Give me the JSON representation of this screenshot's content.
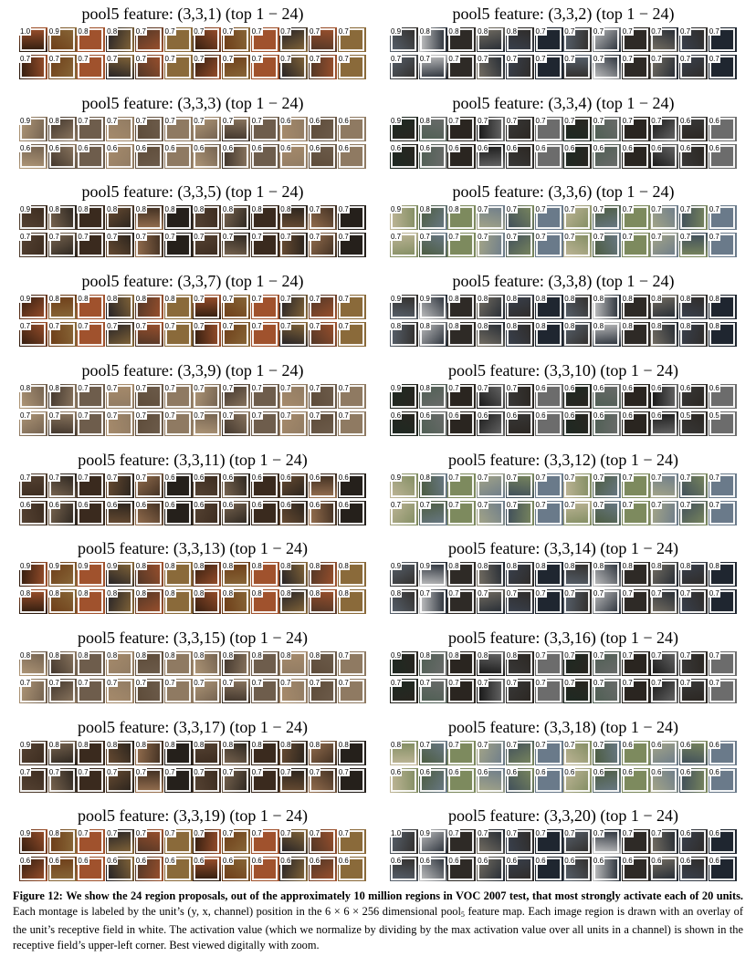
{
  "figure": {
    "panels": [
      {
        "title": "pool5 feature: (3,3,1) (top 1 − 24)",
        "values": [
          "1.0",
          "0.9",
          "0.8",
          "0.8",
          "0.7",
          "0.7",
          "0.7",
          "0.7",
          "0.7",
          "0.7",
          "0.7",
          "0.7",
          "0.7",
          "0.7",
          "0.7",
          "0.7",
          "0.7",
          "0.7",
          "0.7",
          "0.7",
          "0.7",
          "0.7",
          "0.7",
          "0.7"
        ]
      },
      {
        "title": "pool5 feature: (3,3,2) (top 1 − 24)",
        "values": [
          "0.9",
          "0.8",
          "0.8",
          "0.8",
          "0.8",
          "0.7",
          "0.7",
          "0.7",
          "0.7",
          "0.7",
          "0.7",
          "0.7",
          "0.7",
          "0.7",
          "0.7",
          "0.7",
          "0.7",
          "0.7",
          "0.7",
          "0.7",
          "0.7",
          "0.7",
          "0.7",
          "0.7"
        ]
      },
      {
        "title": "pool5 feature: (3,3,3) (top 1 − 24)",
        "values": [
          "0.9",
          "0.8",
          "0.7",
          "0.7",
          "0.7",
          "0.7",
          "0.7",
          "0.7",
          "0.7",
          "0.6",
          "0.6",
          "0.6",
          "0.6",
          "0.6",
          "0.6",
          "0.6",
          "0.6",
          "0.6",
          "0.6",
          "0.6",
          "0.6",
          "0.6",
          "0.6",
          "0.6"
        ]
      },
      {
        "title": "pool5 feature: (3,3,4) (top 1 − 24)",
        "values": [
          "0.9",
          "0.8",
          "0.7",
          "0.7",
          "0.7",
          "0.7",
          "0.7",
          "0.7",
          "0.7",
          "0.7",
          "0.6",
          "0.6",
          "0.6",
          "0.6",
          "0.6",
          "0.6",
          "0.6",
          "0.6",
          "0.6",
          "0.6",
          "0.6",
          "0.6",
          "0.6",
          "0.6"
        ]
      },
      {
        "title": "pool5 feature: (3,3,5) (top 1 − 24)",
        "values": [
          "0.9",
          "0.8",
          "0.8",
          "0.8",
          "0.8",
          "0.8",
          "0.8",
          "0.8",
          "0.8",
          "0.8",
          "0.7",
          "0.7",
          "0.7",
          "0.7",
          "0.7",
          "0.7",
          "0.7",
          "0.7",
          "0.7",
          "0.7",
          "0.7",
          "0.7",
          "0.7",
          "0.7"
        ]
      },
      {
        "title": "pool5 feature: (3,3,6) (top 1 − 24)",
        "values": [
          "0.9",
          "0.8",
          "0.8",
          "0.7",
          "0.7",
          "0.7",
          "0.7",
          "0.7",
          "0.7",
          "0.7",
          "0.7",
          "0.7",
          "0.7",
          "0.7",
          "0.7",
          "0.7",
          "0.7",
          "0.7",
          "0.7",
          "0.7",
          "0.7",
          "0.7",
          "0.7",
          "0.7"
        ]
      },
      {
        "title": "pool5 feature: (3,3,7) (top 1 − 24)",
        "values": [
          "0.9",
          "0.8",
          "0.8",
          "0.8",
          "0.8",
          "0.8",
          "0.7",
          "0.7",
          "0.7",
          "0.7",
          "0.7",
          "0.7",
          "0.7",
          "0.7",
          "0.7",
          "0.7",
          "0.7",
          "0.7",
          "0.7",
          "0.7",
          "0.7",
          "0.7",
          "0.7",
          "0.7"
        ]
      },
      {
        "title": "pool5 feature: (3,3,8) (top 1 − 24)",
        "values": [
          "0.9",
          "0.9",
          "0.8",
          "0.8",
          "0.8",
          "0.8",
          "0.8",
          "0.8",
          "0.8",
          "0.8",
          "0.8",
          "0.8",
          "0.8",
          "0.8",
          "0.8",
          "0.8",
          "0.8",
          "0.8",
          "0.8",
          "0.8",
          "0.8",
          "0.8",
          "0.8",
          "0.8"
        ]
      },
      {
        "title": "pool5 feature: (3,3,9) (top 1 − 24)",
        "values": [
          "0.8",
          "0.8",
          "0.7",
          "0.7",
          "0.7",
          "0.7",
          "0.7",
          "0.7",
          "0.7",
          "0.7",
          "0.7",
          "0.7",
          "0.7",
          "0.7",
          "0.7",
          "0.7",
          "0.7",
          "0.7",
          "0.7",
          "0.7",
          "0.7",
          "0.7",
          "0.7",
          "0.7"
        ]
      },
      {
        "title": "pool5 feature: (3,3,10) (top 1 − 24)",
        "values": [
          "0.9",
          "0.8",
          "0.7",
          "0.7",
          "0.7",
          "0.6",
          "0.6",
          "0.6",
          "0.6",
          "0.6",
          "0.6",
          "0.6",
          "0.6",
          "0.6",
          "0.6",
          "0.6",
          "0.6",
          "0.6",
          "0.6",
          "0.6",
          "0.6",
          "0.6",
          "0.5",
          "0.5"
        ]
      },
      {
        "title": "pool5 feature: (3,3,11) (top 1 − 24)",
        "values": [
          "0.7",
          "0.7",
          "0.7",
          "0.7",
          "0.7",
          "0.6",
          "0.6",
          "0.6",
          "0.6",
          "0.6",
          "0.6",
          "0.6",
          "0.6",
          "0.6",
          "0.6",
          "0.6",
          "0.6",
          "0.6",
          "0.6",
          "0.6",
          "0.6",
          "0.6",
          "0.6",
          "0.6"
        ]
      },
      {
        "title": "pool5 feature: (3,3,12) (top 1 − 24)",
        "values": [
          "0.9",
          "0.8",
          "0.7",
          "0.7",
          "0.7",
          "0.7",
          "0.7",
          "0.7",
          "0.7",
          "0.7",
          "0.7",
          "0.7",
          "0.7",
          "0.7",
          "0.7",
          "0.7",
          "0.7",
          "0.7",
          "0.7",
          "0.7",
          "0.7",
          "0.7",
          "0.7",
          "0.7"
        ]
      },
      {
        "title": "pool5 feature: (3,3,13) (top 1 − 24)",
        "values": [
          "0.9",
          "0.9",
          "0.9",
          "0.9",
          "0.8",
          "0.8",
          "0.8",
          "0.8",
          "0.8",
          "0.8",
          "0.8",
          "0.8",
          "0.8",
          "0.8",
          "0.8",
          "0.8",
          "0.8",
          "0.8",
          "0.8",
          "0.8",
          "0.8",
          "0.8",
          "0.8",
          "0.8"
        ]
      },
      {
        "title": "pool5 feature: (3,3,14) (top 1 − 24)",
        "values": [
          "0.9",
          "0.9",
          "0.8",
          "0.8",
          "0.8",
          "0.8",
          "0.8",
          "0.8",
          "0.8",
          "0.8",
          "0.8",
          "0.8",
          "0.8",
          "0.7",
          "0.7",
          "0.7",
          "0.7",
          "0.7",
          "0.7",
          "0.7",
          "0.7",
          "0.7",
          "0.7",
          "0.7"
        ]
      },
      {
        "title": "pool5 feature: (3,3,15) (top 1 − 24)",
        "values": [
          "0.8",
          "0.8",
          "0.8",
          "0.8",
          "0.8",
          "0.8",
          "0.8",
          "0.8",
          "0.8",
          "0.8",
          "0.8",
          "0.7",
          "0.7",
          "0.7",
          "0.7",
          "0.7",
          "0.7",
          "0.7",
          "0.7",
          "0.7",
          "0.7",
          "0.7",
          "0.7",
          "0.7"
        ]
      },
      {
        "title": "pool5 feature: (3,3,16) (top 1 − 24)",
        "values": [
          "0.9",
          "0.8",
          "0.8",
          "0.8",
          "0.8",
          "0.7",
          "0.7",
          "0.7",
          "0.7",
          "0.7",
          "0.7",
          "0.7",
          "0.7",
          "0.7",
          "0.7",
          "0.7",
          "0.7",
          "0.7",
          "0.7",
          "0.7",
          "0.7",
          "0.7",
          "0.7",
          "0.7"
        ]
      },
      {
        "title": "pool5 feature: (3,3,17) (top 1 − 24)",
        "values": [
          "0.9",
          "0.8",
          "0.8",
          "0.8",
          "0.8",
          "0.8",
          "0.8",
          "0.8",
          "0.8",
          "0.8",
          "0.8",
          "0.8",
          "0.7",
          "0.7",
          "0.7",
          "0.7",
          "0.7",
          "0.7",
          "0.7",
          "0.7",
          "0.7",
          "0.7",
          "0.7",
          "0.7"
        ]
      },
      {
        "title": "pool5 feature: (3,3,18) (top 1 − 24)",
        "values": [
          "0.8",
          "0.7",
          "0.7",
          "0.7",
          "0.7",
          "0.7",
          "0.7",
          "0.7",
          "0.6",
          "0.6",
          "0.6",
          "0.6",
          "0.6",
          "0.6",
          "0.6",
          "0.6",
          "0.6",
          "0.6",
          "0.6",
          "0.6",
          "0.6",
          "0.6",
          "0.6",
          "0.6"
        ]
      },
      {
        "title": "pool5 feature: (3,3,19) (top 1 − 24)",
        "values": [
          "0.9",
          "0.8",
          "0.7",
          "0.7",
          "0.7",
          "0.7",
          "0.7",
          "0.7",
          "0.7",
          "0.7",
          "0.7",
          "0.7",
          "0.6",
          "0.6",
          "0.6",
          "0.6",
          "0.6",
          "0.6",
          "0.6",
          "0.6",
          "0.6",
          "0.6",
          "0.6",
          "0.6"
        ]
      },
      {
        "title": "pool5 feature: (3,3,20) (top 1 − 24)",
        "values": [
          "1.0",
          "0.9",
          "0.7",
          "0.7",
          "0.7",
          "0.7",
          "0.7",
          "0.7",
          "0.7",
          "0.7",
          "0.6",
          "0.6",
          "0.6",
          "0.6",
          "0.6",
          "0.6",
          "0.6",
          "0.6",
          "0.6",
          "0.6",
          "0.6",
          "0.6",
          "0.6",
          "0.6"
        ]
      }
    ]
  },
  "caption": {
    "label": "Figure 12:",
    "bold": "We show the 24 region proposals, out of the approximately 10 million regions in VOC 2007 test, that most strongly activate each of 20 units.",
    "text1": "Each montage is labeled by the unit’s (y, x, channel) position in the 6 × 6 × 256 dimensional pool",
    "sub": "5",
    "text2": "feature map. Each image region is drawn with an overlay of the unit’s receptive field in white. The activation value (which we normalize by dividing by the max activation value over all units in a channel) is shown in the receptive field’s upper-left corner. Best viewed digitally with zoom."
  }
}
